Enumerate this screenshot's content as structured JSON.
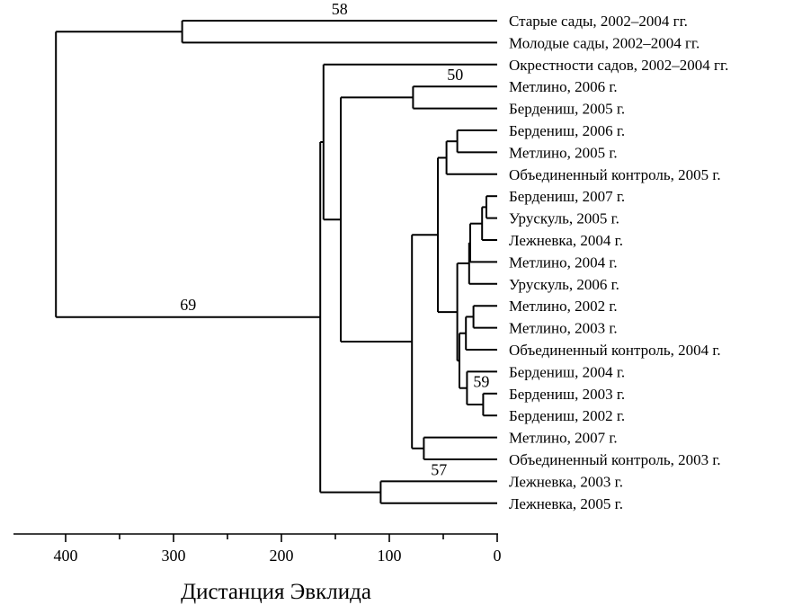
{
  "chart_data": {
    "type": "dendrogram",
    "xlabel": "Дистанция Эвклида",
    "xlim": [
      440,
      0
    ],
    "xticks": [
      400,
      300,
      200,
      100,
      0
    ],
    "xtick_labels": [
      "400",
      "300",
      "200",
      "100",
      "0"
    ],
    "leaves": [
      "Старые сады, 2002–2004 гг.",
      "Молодые сады, 2002–2004 гг.",
      "Окрестности садов, 2002–2004 гг.",
      "Метлино, 2006 г.",
      "Бердениш, 2005 г.",
      "Бердениш, 2006 г.",
      "Метлино, 2005 г.",
      "Объединенный контроль, 2005 г.",
      "Бердениш, 2007 г.",
      "Урускуль, 2005 г.",
      "Лежневка, 2004 г.",
      "Метлино, 2004 г.",
      "Урускуль, 2006 г.",
      "Метлино, 2002 г.",
      "Метлино, 2003 г.",
      "Объединенный контроль, 2004 г.",
      "Бердениш, 2004 г.",
      "Бердениш, 2003 г.",
      "Бердениш, 2002 г.",
      "Метлино, 2007 г.",
      "Объединенный контроль, 2003 г.",
      "Лежневка, 2003 г.",
      "Лежневка, 2005 г."
    ],
    "merges": [
      {
        "id": "A",
        "children": [
          0,
          1
        ],
        "height": 292,
        "label": "58"
      },
      {
        "id": "B",
        "children": [
          3,
          4
        ],
        "height": 78,
        "label": "50"
      },
      {
        "id": "C",
        "children": [
          5,
          6
        ],
        "height": 37,
        "label": ""
      },
      {
        "id": "D",
        "children": [
          "C",
          7
        ],
        "height": 47,
        "label": ""
      },
      {
        "id": "E",
        "children": [
          8,
          9
        ],
        "height": 10,
        "label": ""
      },
      {
        "id": "F",
        "children": [
          "E",
          10
        ],
        "height": 14,
        "label": ""
      },
      {
        "id": "G",
        "children": [
          "F",
          11
        ],
        "height": 25,
        "label": ""
      },
      {
        "id": "H",
        "children": [
          "G",
          12
        ],
        "height": 26,
        "label": ""
      },
      {
        "id": "I",
        "children": [
          13,
          14
        ],
        "height": 22,
        "label": ""
      },
      {
        "id": "J",
        "children": [
          "I",
          15
        ],
        "height": 29,
        "label": ""
      },
      {
        "id": "K",
        "children": [
          17,
          18
        ],
        "height": 13,
        "label": ""
      },
      {
        "id": "L",
        "children": [
          16,
          "K"
        ],
        "height": 28,
        "label": "59"
      },
      {
        "id": "M",
        "children": [
          "J",
          "L"
        ],
        "height": 35,
        "label": ""
      },
      {
        "id": "N",
        "children": [
          "H",
          "M"
        ],
        "height": 37,
        "label": ""
      },
      {
        "id": "O",
        "children": [
          "D",
          "N"
        ],
        "height": 55,
        "label": ""
      },
      {
        "id": "P",
        "children": [
          19,
          20
        ],
        "height": 68,
        "label": ""
      },
      {
        "id": "Q",
        "children": [
          "O",
          "P"
        ],
        "height": 79,
        "label": ""
      },
      {
        "id": "R",
        "children": [
          "B",
          "Q"
        ],
        "height": 145,
        "label": ""
      },
      {
        "id": "S",
        "children": [
          2,
          "R"
        ],
        "height": 161,
        "label": ""
      },
      {
        "id": "T",
        "children": [
          21,
          22
        ],
        "height": 108,
        "label": "57"
      },
      {
        "id": "U",
        "children": [
          "S",
          "T"
        ],
        "height": 164,
        "label": ""
      },
      {
        "id": "V",
        "children": [
          "A",
          "U"
        ],
        "height": 409,
        "label": "69"
      }
    ]
  }
}
